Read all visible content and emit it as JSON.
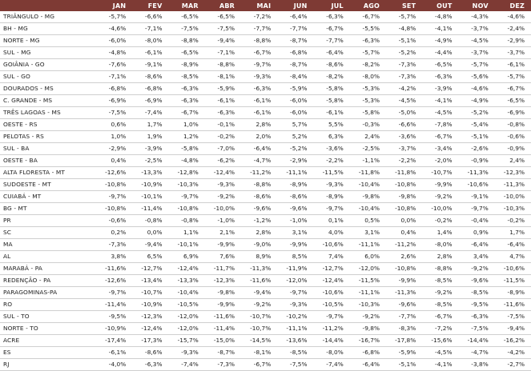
{
  "months": [
    "JAN",
    "FEV",
    "MAR",
    "ABR",
    "MAI",
    "JUN",
    "JUL",
    "AGO",
    "SET",
    "OUT",
    "NOV",
    "DEZ"
  ],
  "rows": [
    {
      "region": "TRIÂNGULO - MG",
      "values": [
        "-5,7%",
        "-6,6%",
        "-6,5%",
        "-6,5%",
        "-7,2%",
        "-6,4%",
        "-6,3%",
        "-6,7%",
        "-5,7%",
        "-4,8%",
        "-4,3%",
        "-4,6%"
      ]
    },
    {
      "region": "BH - MG",
      "values": [
        "-4,6%",
        "-7,1%",
        "-7,5%",
        "-7,5%",
        "-7,7%",
        "-7,7%",
        "-6,7%",
        "-5,5%",
        "-4,8%",
        "-4,1%",
        "-3,7%",
        "-2,4%"
      ]
    },
    {
      "region": "NORTE - MG",
      "values": [
        "-6,0%",
        "-8,0%",
        "-8,8%",
        "-9,4%",
        "-8,8%",
        "-8,7%",
        "-7,7%",
        "-6,3%",
        "-5,1%",
        "-4,9%",
        "-4,5%",
        "-2,9%"
      ]
    },
    {
      "region": "SUL - MG",
      "values": [
        "-4,8%",
        "-6,1%",
        "-6,5%",
        "-7,1%",
        "-6,7%",
        "-6,8%",
        "-6,4%",
        "-5,7%",
        "-5,2%",
        "-4,4%",
        "-3,7%",
        "-3,7%"
      ]
    },
    {
      "region": "GOIÂNIA - GO",
      "values": [
        "-7,6%",
        "-9,1%",
        "-8,9%",
        "-8,8%",
        "-9,7%",
        "-8,7%",
        "-8,6%",
        "-8,2%",
        "-7,3%",
        "-6,5%",
        "-5,7%",
        "-6,1%"
      ]
    },
    {
      "region": "SUL - GO",
      "values": [
        "-7,1%",
        "-8,6%",
        "-8,5%",
        "-8,1%",
        "-9,3%",
        "-8,4%",
        "-8,2%",
        "-8,0%",
        "-7,3%",
        "-6,3%",
        "-5,6%",
        "-5,7%"
      ]
    },
    {
      "region": "DOURADOS - MS",
      "values": [
        "-6,8%",
        "-6,8%",
        "-6,3%",
        "-5,9%",
        "-6,3%",
        "-5,9%",
        "-5,8%",
        "-5,3%",
        "-4,2%",
        "-3,9%",
        "-4,6%",
        "-6,7%"
      ]
    },
    {
      "region": "C. GRANDE - MS",
      "values": [
        "-6,9%",
        "-6,9%",
        "-6,3%",
        "-6,1%",
        "-6,1%",
        "-6,0%",
        "-5,8%",
        "-5,3%",
        "-4,5%",
        "-4,1%",
        "-4,9%",
        "-6,5%"
      ]
    },
    {
      "region": "TRÊS LAGOAS - MS",
      "values": [
        "-7,5%",
        "-7,4%",
        "-6,7%",
        "-6,3%",
        "-6,1%",
        "-6,0%",
        "-6,1%",
        "-5,8%",
        "-5,0%",
        "-4,5%",
        "-5,2%",
        "-6,9%"
      ]
    },
    {
      "region": "OESTE - RS",
      "values": [
        "0,6%",
        "1,7%",
        "1,0%",
        "-0,1%",
        "2,8%",
        "5,7%",
        "5,5%",
        "-0,3%",
        "-6,6%",
        "-7,8%",
        "-5,4%",
        "-0,8%"
      ]
    },
    {
      "region": "PELOTAS - RS",
      "values": [
        "1,0%",
        "1,9%",
        "1,2%",
        "-0,2%",
        "2,0%",
        "5,2%",
        "6,3%",
        "2,4%",
        "-3,6%",
        "-6,7%",
        "-5,1%",
        "-0,6%"
      ]
    },
    {
      "region": "SUL - BA",
      "values": [
        "-2,9%",
        "-3,9%",
        "-5,8%",
        "-7,0%",
        "-6,4%",
        "-5,2%",
        "-3,6%",
        "-2,5%",
        "-3,7%",
        "-3,4%",
        "-2,6%",
        "-0,9%"
      ]
    },
    {
      "region": "OESTE - BA",
      "values": [
        "0,4%",
        "-2,5%",
        "-4,8%",
        "-6,2%",
        "-4,7%",
        "-2,9%",
        "-2,2%",
        "-1,1%",
        "-2,2%",
        "-2,0%",
        "-0,9%",
        "2,4%"
      ]
    },
    {
      "region": "ALTA FLORESTA - MT",
      "values": [
        "-12,6%",
        "-13,3%",
        "-12,8%",
        "-12,4%",
        "-11,2%",
        "-11,1%",
        "-11,5%",
        "-11,8%",
        "-11,8%",
        "-10,7%",
        "-11,3%",
        "-12,3%"
      ]
    },
    {
      "region": "SUDOESTE - MT",
      "values": [
        "-10,8%",
        "-10,9%",
        "-10,3%",
        "-9,3%",
        "-8,8%",
        "-8,9%",
        "-9,3%",
        "-10,4%",
        "-10,8%",
        "-9,9%",
        "-10,6%",
        "-11,3%"
      ]
    },
    {
      "region": "CUIABÁ - MT",
      "values": [
        "-9,7%",
        "-10,1%",
        "-9,7%",
        "-9,2%",
        "-8,6%",
        "-8,6%",
        "-8,9%",
        "-9,8%",
        "-9,8%",
        "-9,2%",
        "-9,1%",
        "-10,0%"
      ]
    },
    {
      "region": "BG - MT",
      "values": [
        "-10,8%",
        "-11,4%",
        "-10,8%",
        "-10,0%",
        "-9,6%",
        "-9,6%",
        "-9,7%",
        "-10,4%",
        "-10,8%",
        "-10,0%",
        "-9,7%",
        "-10,3%"
      ]
    },
    {
      "region": "PR",
      "values": [
        "-0,6%",
        "-0,8%",
        "-0,8%",
        "-1,0%",
        "-1,2%",
        "-1,0%",
        "0,1%",
        "0,5%",
        "0,0%",
        "-0,2%",
        "-0,4%",
        "-0,2%"
      ]
    },
    {
      "region": "SC",
      "values": [
        "0,2%",
        "0,0%",
        "1,1%",
        "2,1%",
        "2,8%",
        "3,1%",
        "4,0%",
        "3,1%",
        "0,4%",
        "1,4%",
        "0,9%",
        "1,7%"
      ]
    },
    {
      "region": "MA",
      "values": [
        "-7,3%",
        "-9,4%",
        "-10,1%",
        "-9,9%",
        "-9,0%",
        "-9,9%",
        "-10,6%",
        "-11,1%",
        "-11,2%",
        "-8,0%",
        "-6,4%",
        "-6,4%"
      ]
    },
    {
      "region": "AL",
      "values": [
        "3,8%",
        "6,5%",
        "6,9%",
        "7,6%",
        "8,9%",
        "8,5%",
        "7,4%",
        "6,0%",
        "2,6%",
        "2,8%",
        "3,4%",
        "4,7%"
      ]
    },
    {
      "region": "MARABÁ - PA",
      "values": [
        "-11,6%",
        "-12,7%",
        "-12,4%",
        "-11,7%",
        "-11,3%",
        "-11,9%",
        "-12,7%",
        "-12,0%",
        "-10,8%",
        "-8,8%",
        "-9,2%",
        "-10,6%"
      ]
    },
    {
      "region": "REDENÇÃO - PA",
      "values": [
        "-12,6%",
        "-13,4%",
        "-13,3%",
        "-12,3%",
        "-11,6%",
        "-12,0%",
        "-12,4%",
        "-11,5%",
        "-9,9%",
        "-8,5%",
        "-9,6%",
        "-11,5%"
      ]
    },
    {
      "region": "PARAGOMINAS-PA",
      "values": [
        "-9,7%",
        "-10,7%",
        "-10,4%",
        "-9,8%",
        "-9,4%",
        "-9,7%",
        "-10,6%",
        "-11,1%",
        "-11,3%",
        "-9,2%",
        "-8,5%",
        "-8,9%"
      ]
    },
    {
      "region": "RO",
      "values": [
        "-11,4%",
        "-10,9%",
        "-10,5%",
        "-9,9%",
        "-9,2%",
        "-9,3%",
        "-10,5%",
        "-10,3%",
        "-9,6%",
        "-8,5%",
        "-9,5%",
        "-11,6%"
      ]
    },
    {
      "region": "SUL - TO",
      "values": [
        "-9,5%",
        "-12,3%",
        "-12,0%",
        "-11,6%",
        "-10,7%",
        "-10,2%",
        "-9,7%",
        "-9,2%",
        "-7,7%",
        "-6,7%",
        "-6,3%",
        "-7,5%"
      ]
    },
    {
      "region": "NORTE - TO",
      "values": [
        "-10,9%",
        "-12,4%",
        "-12,0%",
        "-11,4%",
        "-10,7%",
        "-11,1%",
        "-11,2%",
        "-9,8%",
        "-8,3%",
        "-7,2%",
        "-7,5%",
        "-9,4%"
      ]
    },
    {
      "region": "ACRE",
      "values": [
        "-17,4%",
        "-17,3%",
        "-15,7%",
        "-15,0%",
        "-14,5%",
        "-13,6%",
        "-14,4%",
        "-16,7%",
        "-17,8%",
        "-15,6%",
        "-14,4%",
        "-16,2%"
      ]
    },
    {
      "region": "ES",
      "values": [
        "-6,1%",
        "-8,6%",
        "-9,3%",
        "-8,7%",
        "-8,1%",
        "-8,5%",
        "-8,0%",
        "-6,8%",
        "-5,9%",
        "-4,5%",
        "-4,7%",
        "-4,2%"
      ]
    },
    {
      "region": "RJ",
      "values": [
        "-4,0%",
        "-6,3%",
        "-7,4%",
        "-7,3%",
        "-6,7%",
        "-7,5%",
        "-7,4%",
        "-6,4%",
        "-5,1%",
        "-4,1%",
        "-3,8%",
        "-2,7%"
      ]
    }
  ]
}
